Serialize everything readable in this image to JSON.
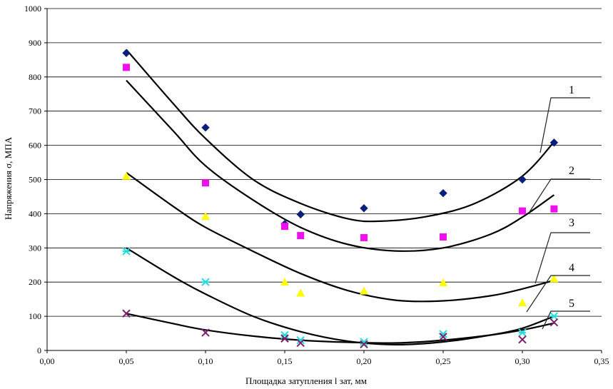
{
  "chart_data": {
    "type": "scatter",
    "title": "",
    "xlabel": "Площадка затупления l зат, мм",
    "ylabel": "Напряжения σ, МПА",
    "xlim": [
      0.0,
      0.35
    ],
    "ylim": [
      0,
      1000
    ],
    "x_ticks": [
      "0,00",
      "0,05",
      "0,10",
      "0,15",
      "0,20",
      "0,25",
      "0,30",
      "0,35"
    ],
    "y_ticks": [
      "0",
      "100",
      "200",
      "300",
      "400",
      "500",
      "600",
      "700",
      "800",
      "900",
      "1000"
    ],
    "horizontal_grid": true,
    "series": [
      {
        "name": "1",
        "marker": "diamond",
        "color": "#0a1f7a",
        "points": [
          [
            0.05,
            870
          ],
          [
            0.1,
            652
          ],
          [
            0.15,
            370
          ],
          [
            0.16,
            398
          ],
          [
            0.2,
            416
          ],
          [
            0.25,
            460
          ],
          [
            0.3,
            500
          ],
          [
            0.32,
            608
          ]
        ],
        "trend": [
          [
            0.05,
            880
          ],
          [
            0.08,
            720
          ],
          [
            0.1,
            620
          ],
          [
            0.13,
            500
          ],
          [
            0.16,
            430
          ],
          [
            0.19,
            385
          ],
          [
            0.21,
            378
          ],
          [
            0.24,
            392
          ],
          [
            0.27,
            430
          ],
          [
            0.3,
            510
          ],
          [
            0.32,
            610
          ]
        ]
      },
      {
        "name": "2",
        "marker": "square",
        "color": "#ee11ee",
        "points": [
          [
            0.05,
            828
          ],
          [
            0.1,
            490
          ],
          [
            0.15,
            363
          ],
          [
            0.16,
            336
          ],
          [
            0.2,
            330
          ],
          [
            0.25,
            332
          ],
          [
            0.3,
            408
          ],
          [
            0.32,
            414
          ]
        ],
        "trend": [
          [
            0.05,
            790
          ],
          [
            0.08,
            640
          ],
          [
            0.1,
            540
          ],
          [
            0.13,
            440
          ],
          [
            0.16,
            360
          ],
          [
            0.19,
            310
          ],
          [
            0.22,
            291
          ],
          [
            0.25,
            300
          ],
          [
            0.28,
            340
          ],
          [
            0.3,
            390
          ],
          [
            0.32,
            455
          ]
        ]
      },
      {
        "name": "3",
        "marker": "triangle",
        "color": "#ffff00",
        "points": [
          [
            0.05,
            510
          ],
          [
            0.1,
            392
          ],
          [
            0.15,
            200
          ],
          [
            0.16,
            168
          ],
          [
            0.2,
            174
          ],
          [
            0.25,
            198
          ],
          [
            0.3,
            140
          ],
          [
            0.32,
            210
          ]
        ],
        "trend": [
          [
            0.05,
            520
          ],
          [
            0.08,
            420
          ],
          [
            0.1,
            360
          ],
          [
            0.13,
            290
          ],
          [
            0.16,
            225
          ],
          [
            0.19,
            175
          ],
          [
            0.22,
            147
          ],
          [
            0.25,
            145
          ],
          [
            0.28,
            160
          ],
          [
            0.3,
            180
          ],
          [
            0.32,
            205
          ]
        ]
      },
      {
        "name": "4",
        "marker": "asterisk",
        "color": "#22dddd",
        "points": [
          [
            0.05,
            290
          ],
          [
            0.1,
            200
          ],
          [
            0.15,
            45
          ],
          [
            0.16,
            30
          ],
          [
            0.2,
            25
          ],
          [
            0.25,
            48
          ],
          [
            0.3,
            52
          ],
          [
            0.32,
            100
          ]
        ],
        "trend": [
          [
            0.05,
            300
          ],
          [
            0.08,
            215
          ],
          [
            0.1,
            165
          ],
          [
            0.13,
            100
          ],
          [
            0.16,
            55
          ],
          [
            0.19,
            27
          ],
          [
            0.22,
            17
          ],
          [
            0.25,
            25
          ],
          [
            0.28,
            45
          ],
          [
            0.3,
            65
          ],
          [
            0.32,
            100
          ]
        ]
      },
      {
        "name": "5",
        "marker": "x",
        "color": "#7a1f6a",
        "points": [
          [
            0.05,
            108
          ],
          [
            0.1,
            52
          ],
          [
            0.15,
            35
          ],
          [
            0.16,
            22
          ],
          [
            0.2,
            18
          ],
          [
            0.25,
            40
          ],
          [
            0.3,
            32
          ],
          [
            0.32,
            82
          ]
        ],
        "trend": [
          [
            0.05,
            108
          ],
          [
            0.08,
            78
          ],
          [
            0.1,
            60
          ],
          [
            0.13,
            42
          ],
          [
            0.16,
            30
          ],
          [
            0.19,
            24
          ],
          [
            0.22,
            22
          ],
          [
            0.25,
            30
          ],
          [
            0.28,
            45
          ],
          [
            0.3,
            60
          ],
          [
            0.32,
            80
          ]
        ]
      }
    ],
    "curve_labels": [
      "1",
      "2",
      "3",
      "4",
      "5"
    ]
  }
}
